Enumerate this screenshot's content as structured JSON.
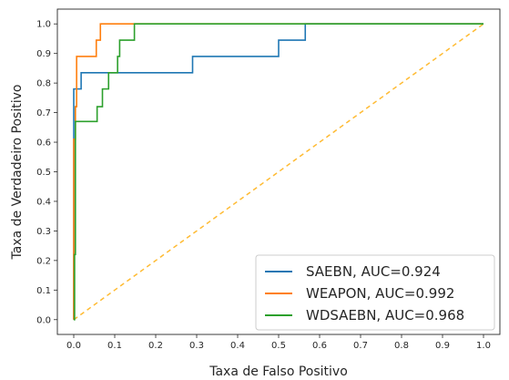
{
  "chart_data": {
    "type": "line",
    "title": "",
    "xlabel": "Taxa de Falso Positivo",
    "ylabel": "Taxa de Verdadeiro Positivo",
    "xlim": [
      -0.04,
      1.04
    ],
    "ylim": [
      -0.05,
      1.05
    ],
    "grid": false,
    "legend_position": "lower-right",
    "x_ticks": [
      "0.0",
      "0.1",
      "0.2",
      "0.3",
      "0.4",
      "0.5",
      "0.6",
      "0.7",
      "0.8",
      "0.9",
      "1.0"
    ],
    "y_ticks": [
      "0.0",
      "0.1",
      "0.2",
      "0.3",
      "0.4",
      "0.5",
      "0.6",
      "0.7",
      "0.8",
      "0.9",
      "1.0"
    ],
    "series": [
      {
        "name": "SAEBN, AUC=0.924",
        "color": "#1f77b4",
        "x": [
          0,
          0,
          0,
          0.005,
          0.005,
          0.018,
          0.018,
          0.29,
          0.29,
          0.5,
          0.5,
          0.565,
          0.565,
          1.0
        ],
        "y": [
          0,
          0.61,
          0.78,
          0.78,
          0.78,
          0.78,
          0.835,
          0.835,
          0.89,
          0.89,
          0.945,
          0.945,
          1.0,
          1.0
        ]
      },
      {
        "name": "WEAPON, AUC=0.992",
        "color": "#ff7f0e",
        "x": [
          0,
          0,
          0.004,
          0.004,
          0.007,
          0.007,
          0.055,
          0.055,
          0.065,
          0.065,
          1.0
        ],
        "y": [
          0,
          0.61,
          0.61,
          0.72,
          0.72,
          0.89,
          0.89,
          0.945,
          0.945,
          1.0,
          1.0
        ]
      },
      {
        "name": "WDSAEBN, AUC=0.968",
        "color": "#2ca02c",
        "x": [
          0,
          0.002,
          0.002,
          0.004,
          0.004,
          0.057,
          0.057,
          0.07,
          0.07,
          0.085,
          0.085,
          0.107,
          0.107,
          0.112,
          0.112,
          0.148,
          0.148,
          1.0
        ],
        "y": [
          0,
          0,
          0.22,
          0.22,
          0.67,
          0.67,
          0.72,
          0.72,
          0.78,
          0.78,
          0.835,
          0.835,
          0.89,
          0.89,
          0.945,
          0.945,
          1.0,
          1.0
        ]
      }
    ],
    "diagonal": {
      "color": "#ffbb33",
      "x": [
        0,
        1
      ],
      "y": [
        0,
        1
      ]
    }
  }
}
